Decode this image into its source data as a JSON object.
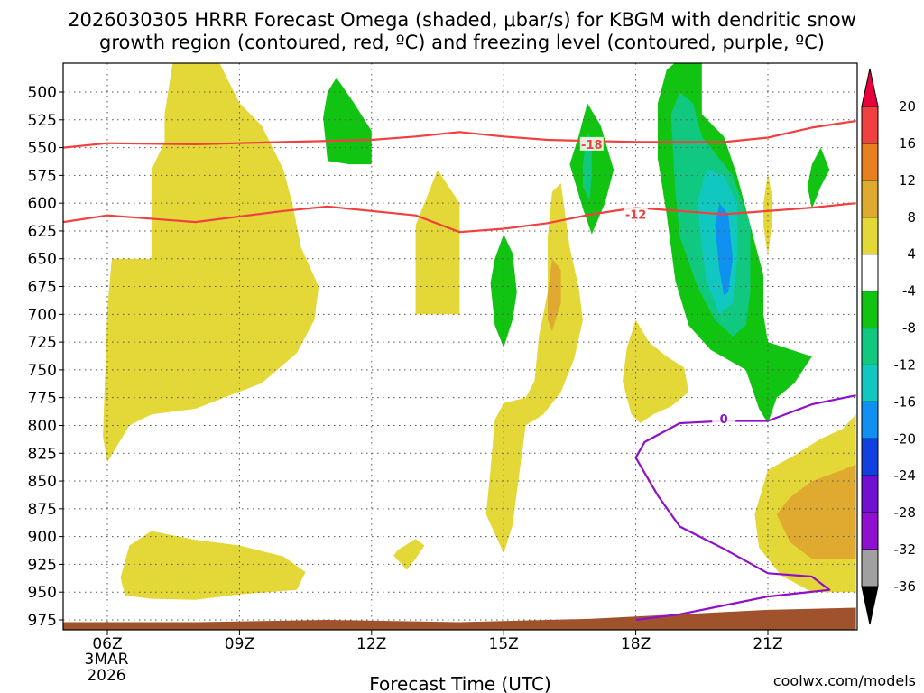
{
  "chart_data": {
    "type": "heatmap",
    "title_line1": "2026030305 HRRR Forecast Omega (shaded, μbar/s) for KBGM with dendritic snow",
    "title_line2": "growth region (contoured, red, ºC) and freezing level (contoured, purple, ºC)",
    "xlabel": "Forecast Time (UTC)",
    "watermark": "coolwx.com/models",
    "date_label": [
      "3MAR",
      "2026"
    ],
    "x_ticks": [
      {
        "hour": 6,
        "label": "06Z"
      },
      {
        "hour": 9,
        "label": "09Z"
      },
      {
        "hour": 12,
        "label": "12Z"
      },
      {
        "hour": 15,
        "label": "15Z"
      },
      {
        "hour": 18,
        "label": "18Z"
      },
      {
        "hour": 21,
        "label": "21Z"
      }
    ],
    "xlim": [
      5,
      23
    ],
    "ylim": [
      980,
      470
    ],
    "y_ticks": [
      500,
      525,
      550,
      575,
      600,
      625,
      650,
      675,
      700,
      725,
      750,
      775,
      800,
      825,
      850,
      875,
      900,
      925,
      950,
      975
    ],
    "colorbar": {
      "labels": [
        "20",
        "16",
        "12",
        "8",
        "4",
        "-4",
        "-8",
        "-12",
        "-16",
        "-20",
        "-24",
        "-28",
        "-32",
        "-36"
      ],
      "colors": [
        "#e8003c",
        "#f04040",
        "#e88020",
        "#e0aa30",
        "#e3d838",
        "#ffffff",
        "#12c412",
        "#10c880",
        "#10c8c0",
        "#1090f0",
        "#1040e0",
        "#7010d0",
        "#9010d0",
        "#a0a0a0",
        "#000000"
      ]
    },
    "colors": {
      "yellow": "#e3d838",
      "orange": "#e0aa30",
      "green": "#12c412",
      "teal": "#10c880",
      "cyan": "#10c8c0",
      "blue": "#1090f0",
      "red_contour": "#f04040",
      "purple_contour": "#9010c8",
      "terrain": "#a0522d"
    },
    "contours": [
      {
        "name": "dgz_top",
        "value": "-18",
        "label": "-18",
        "label_at": [
          17.0,
          547
        ],
        "points": [
          [
            5,
            550
          ],
          [
            6,
            546
          ],
          [
            8,
            547
          ],
          [
            10,
            545
          ],
          [
            12,
            543
          ],
          [
            13,
            540
          ],
          [
            14,
            536
          ],
          [
            15,
            540
          ],
          [
            16,
            543
          ],
          [
            18,
            545
          ],
          [
            20,
            545
          ],
          [
            21,
            541
          ],
          [
            22,
            532
          ],
          [
            23,
            526
          ]
        ]
      },
      {
        "name": "dgz_bottom",
        "value": "-12",
        "label": "-12",
        "label_at": [
          18.0,
          610
        ],
        "points": [
          [
            5,
            617
          ],
          [
            6,
            611
          ],
          [
            8,
            617
          ],
          [
            10,
            607
          ],
          [
            11,
            603
          ],
          [
            13,
            611
          ],
          [
            14,
            626
          ],
          [
            15,
            623
          ],
          [
            16,
            618
          ],
          [
            17,
            610
          ],
          [
            18,
            604
          ],
          [
            20,
            610
          ],
          [
            22,
            604
          ],
          [
            23,
            600
          ]
        ]
      },
      {
        "name": "freezing_level",
        "value": "0",
        "label": "0",
        "label_at": [
          20.0,
          794
        ],
        "points": [
          [
            23,
            773
          ],
          [
            22,
            781
          ],
          [
            21,
            796
          ],
          [
            20,
            796
          ],
          [
            19,
            798
          ],
          [
            18.2,
            815
          ],
          [
            18,
            829
          ],
          [
            18.5,
            863
          ],
          [
            19,
            891
          ],
          [
            20,
            911
          ],
          [
            21,
            933
          ],
          [
            22,
            936
          ],
          [
            22.4,
            948
          ],
          [
            21,
            954
          ],
          [
            20,
            962
          ],
          [
            19,
            970
          ],
          [
            18,
            975
          ]
        ]
      }
    ],
    "omega_regions": [
      {
        "name": "yellow-upper-left",
        "level": 4,
        "color": "yellow",
        "points": [
          [
            6.0,
            695
          ],
          [
            6.1,
            650
          ],
          [
            7.0,
            650
          ],
          [
            7.0,
            570
          ],
          [
            7.3,
            545
          ],
          [
            7.3,
            520
          ],
          [
            7.5,
            470
          ],
          [
            8.5,
            470
          ],
          [
            9.0,
            510
          ],
          [
            9.5,
            530
          ],
          [
            10.0,
            570
          ],
          [
            10.2,
            600
          ],
          [
            10.4,
            640
          ],
          [
            10.8,
            675
          ],
          [
            10.7,
            705
          ],
          [
            10.3,
            735
          ],
          [
            9.5,
            762
          ],
          [
            8.0,
            785
          ],
          [
            7.0,
            790
          ],
          [
            6.5,
            800
          ],
          [
            6.0,
            833
          ],
          [
            5.9,
            810
          ]
        ]
      },
      {
        "name": "yellow-lower-left",
        "level": 4,
        "color": "yellow",
        "points": [
          [
            6.3,
            937
          ],
          [
            6.5,
            908
          ],
          [
            7.0,
            895
          ],
          [
            8.0,
            903
          ],
          [
            9.0,
            908
          ],
          [
            10.0,
            918
          ],
          [
            10.5,
            932
          ],
          [
            10.3,
            948
          ],
          [
            9.0,
            952
          ],
          [
            8.0,
            957
          ],
          [
            7.0,
            956
          ],
          [
            6.4,
            953
          ]
        ]
      },
      {
        "name": "yellow-small-13z",
        "level": 4,
        "color": "yellow",
        "points": [
          [
            12.6,
            912
          ],
          [
            13.0,
            902
          ],
          [
            13.2,
            908
          ],
          [
            13.0,
            920
          ],
          [
            12.8,
            930
          ],
          [
            12.5,
            917
          ]
        ]
      },
      {
        "name": "yellow-13z-column",
        "level": 4,
        "color": "yellow",
        "points": [
          [
            13.0,
            655
          ],
          [
            13.0,
            620
          ],
          [
            13.5,
            570
          ],
          [
            14.0,
            600
          ],
          [
            14.0,
            650
          ],
          [
            14.0,
            700
          ],
          [
            13.5,
            700
          ],
          [
            13.0,
            700
          ]
        ]
      },
      {
        "name": "yellow-15z-16z",
        "level": 4,
        "color": "yellow",
        "points": [
          [
            14.7,
            840
          ],
          [
            14.8,
            795
          ],
          [
            15.0,
            780
          ],
          [
            15.5,
            775
          ],
          [
            15.7,
            760
          ],
          [
            15.8,
            720
          ],
          [
            16.0,
            680
          ],
          [
            16.0,
            630
          ],
          [
            16.1,
            590
          ],
          [
            16.3,
            582
          ],
          [
            16.5,
            640
          ],
          [
            16.7,
            675
          ],
          [
            16.8,
            705
          ],
          [
            16.6,
            740
          ],
          [
            16.3,
            770
          ],
          [
            15.9,
            790
          ],
          [
            15.5,
            800
          ],
          [
            15.4,
            830
          ],
          [
            15.3,
            860
          ],
          [
            15.2,
            890
          ],
          [
            15.0,
            915
          ],
          [
            14.6,
            880
          ]
        ]
      },
      {
        "name": "orange-16z",
        "level": 8,
        "color": "orange",
        "points": [
          [
            16.0,
            680
          ],
          [
            16.1,
            650
          ],
          [
            16.3,
            660
          ],
          [
            16.3,
            690
          ],
          [
            16.1,
            715
          ],
          [
            16.0,
            705
          ]
        ]
      },
      {
        "name": "yellow-18z",
        "level": 4,
        "color": "yellow",
        "points": [
          [
            17.7,
            760
          ],
          [
            17.8,
            730
          ],
          [
            18.0,
            705
          ],
          [
            18.3,
            725
          ],
          [
            18.7,
            738
          ],
          [
            19.1,
            748
          ],
          [
            19.2,
            770
          ],
          [
            18.8,
            783
          ],
          [
            18.4,
            790
          ],
          [
            18.1,
            798
          ],
          [
            17.9,
            790
          ]
        ]
      },
      {
        "name": "yellow-21z-thin",
        "level": 4,
        "color": "yellow",
        "points": [
          [
            20.9,
            600
          ],
          [
            21.0,
            573
          ],
          [
            21.1,
            595
          ],
          [
            21.1,
            615
          ],
          [
            21.0,
            648
          ],
          [
            20.9,
            620
          ]
        ]
      },
      {
        "name": "yellow-lower-right",
        "level": 4,
        "color": "yellow",
        "points": [
          [
            20.7,
            880
          ],
          [
            21.0,
            840
          ],
          [
            21.6,
            827
          ],
          [
            22.2,
            812
          ],
          [
            22.7,
            803
          ],
          [
            23.0,
            790
          ],
          [
            23.0,
            950
          ],
          [
            22.0,
            950
          ],
          [
            21.3,
            935
          ],
          [
            20.8,
            910
          ]
        ]
      },
      {
        "name": "orange-lower-right",
        "level": 8,
        "color": "orange",
        "points": [
          [
            21.2,
            880
          ],
          [
            21.5,
            865
          ],
          [
            22.0,
            850
          ],
          [
            22.7,
            840
          ],
          [
            23.0,
            835
          ],
          [
            23.0,
            920
          ],
          [
            22.0,
            920
          ],
          [
            21.5,
            905
          ]
        ]
      },
      {
        "name": "green-11z",
        "level": -4,
        "color": "green",
        "points": [
          [
            10.9,
            523
          ],
          [
            11.0,
            500
          ],
          [
            11.2,
            487
          ],
          [
            11.6,
            510
          ],
          [
            12.0,
            535
          ],
          [
            12.0,
            555
          ],
          [
            12.0,
            565
          ],
          [
            11.5,
            565
          ],
          [
            11.0,
            562
          ]
        ]
      },
      {
        "name": "green-15z",
        "level": -4,
        "color": "green",
        "points": [
          [
            14.7,
            672
          ],
          [
            14.8,
            650
          ],
          [
            15.0,
            628
          ],
          [
            15.2,
            645
          ],
          [
            15.3,
            680
          ],
          [
            15.2,
            705
          ],
          [
            15.0,
            730
          ],
          [
            14.8,
            710
          ]
        ]
      },
      {
        "name": "green-17z",
        "level": -4,
        "color": "green",
        "points": [
          [
            16.5,
            565
          ],
          [
            16.7,
            540
          ],
          [
            16.9,
            510
          ],
          [
            17.2,
            530
          ],
          [
            17.5,
            570
          ],
          [
            17.3,
            600
          ],
          [
            17.0,
            628
          ],
          [
            16.8,
            605
          ]
        ]
      },
      {
        "name": "teal-17z",
        "level": -8,
        "color": "teal",
        "points": [
          [
            16.8,
            565
          ],
          [
            16.9,
            535
          ],
          [
            17.0,
            548
          ],
          [
            17.0,
            575
          ],
          [
            16.95,
            598
          ],
          [
            16.8,
            585
          ]
        ]
      },
      {
        "name": "green-19z-21z",
        "level": -4,
        "color": "green",
        "points": [
          [
            18.5,
            510
          ],
          [
            18.7,
            480
          ],
          [
            19.0,
            470
          ],
          [
            19.5,
            470
          ],
          [
            19.5,
            520
          ],
          [
            20.0,
            540
          ],
          [
            20.3,
            575
          ],
          [
            20.6,
            620
          ],
          [
            20.9,
            665
          ],
          [
            20.9,
            700
          ],
          [
            21.0,
            725
          ],
          [
            22.0,
            738
          ],
          [
            21.6,
            762
          ],
          [
            21.2,
            775
          ],
          [
            21.0,
            798
          ],
          [
            20.8,
            785
          ],
          [
            20.5,
            750
          ],
          [
            19.7,
            732
          ],
          [
            19.2,
            710
          ],
          [
            18.9,
            670
          ],
          [
            18.7,
            610
          ],
          [
            18.5,
            560
          ]
        ]
      },
      {
        "name": "teal-19z-21z",
        "level": -8,
        "color": "teal",
        "points": [
          [
            18.8,
            520
          ],
          [
            19.0,
            500
          ],
          [
            19.3,
            510
          ],
          [
            19.5,
            540
          ],
          [
            20.2,
            575
          ],
          [
            20.6,
            620
          ],
          [
            20.6,
            680
          ],
          [
            20.5,
            710
          ],
          [
            20.2,
            720
          ],
          [
            19.8,
            705
          ],
          [
            19.4,
            675
          ],
          [
            19.0,
            630
          ],
          [
            18.9,
            590
          ]
        ]
      },
      {
        "name": "cyan-19z-21z",
        "level": -12,
        "color": "cyan",
        "points": [
          [
            19.4,
            600
          ],
          [
            19.6,
            570
          ],
          [
            20.0,
            575
          ],
          [
            20.3,
            600
          ],
          [
            20.3,
            650
          ],
          [
            20.2,
            690
          ],
          [
            19.9,
            700
          ],
          [
            19.6,
            670
          ],
          [
            19.5,
            640
          ]
        ]
      },
      {
        "name": "blue-20z",
        "level": -16,
        "color": "blue",
        "points": [
          [
            19.8,
            620
          ],
          [
            19.9,
            600
          ],
          [
            20.1,
            610
          ],
          [
            20.2,
            650
          ],
          [
            20.1,
            680
          ],
          [
            20.0,
            683
          ],
          [
            19.9,
            660
          ]
        ]
      },
      {
        "name": "green-22z",
        "level": -4,
        "color": "green",
        "points": [
          [
            22.0,
            565
          ],
          [
            22.2,
            550
          ],
          [
            22.4,
            570
          ],
          [
            22.2,
            585
          ],
          [
            22.0,
            605
          ],
          [
            21.9,
            585
          ]
        ]
      }
    ],
    "terrain": {
      "points": [
        [
          5,
          977
        ],
        [
          8,
          977
        ],
        [
          11,
          975
        ],
        [
          14,
          977
        ],
        [
          17,
          974
        ],
        [
          19,
          970
        ],
        [
          21,
          966
        ],
        [
          23,
          964
        ]
      ]
    }
  }
}
